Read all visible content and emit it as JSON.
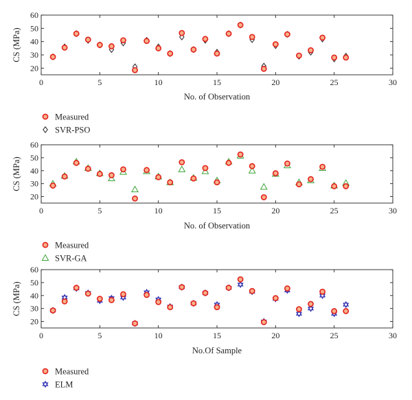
{
  "colors": {
    "axis": "#231f20",
    "measured": "#e2211c",
    "measured_fill": "#f7b08a",
    "svr_pso": "#231f20",
    "svr_ga": "#3aa335",
    "elm": "#2b2bb0"
  },
  "chart_data": [
    {
      "type": "scatter",
      "xlabel": "No. of Observation",
      "ylabel": "CS (MPa)",
      "xlim": [
        0,
        30
      ],
      "ylim": [
        15,
        60
      ],
      "xticks": [
        0,
        5,
        10,
        15,
        20,
        25,
        30
      ],
      "yticks": [
        20,
        30,
        40,
        50,
        60
      ],
      "grid": false,
      "legend_position": "below-left",
      "series": [
        {
          "name": "Measured",
          "marker": "circle",
          "x": [
            1,
            2,
            3,
            4,
            5,
            6,
            7,
            8,
            9,
            10,
            11,
            12,
            13,
            14,
            15,
            16,
            17,
            18,
            19,
            20,
            21,
            22,
            23,
            24,
            25,
            26
          ],
          "y": [
            28.5,
            35.5,
            46,
            41.5,
            37.5,
            36.5,
            41,
            18.5,
            40.5,
            35,
            31,
            46.5,
            34,
            42,
            31,
            46,
            52.5,
            43.5,
            19.5,
            38,
            45.5,
            29.5,
            33.5,
            43,
            28,
            28
          ]
        },
        {
          "name": "SVR-PSO",
          "marker": "diamond",
          "x": [
            1,
            2,
            3,
            4,
            5,
            6,
            7,
            8,
            9,
            10,
            11,
            12,
            13,
            14,
            15,
            16,
            17,
            18,
            19,
            20,
            21,
            22,
            23,
            24,
            25,
            26
          ],
          "y": [
            28.5,
            36,
            46,
            41,
            37.5,
            34,
            39,
            21,
            41,
            36,
            31,
            43.5,
            34,
            41,
            32,
            46,
            52.5,
            41.5,
            21.5,
            37,
            45.5,
            29,
            32,
            42,
            27,
            29
          ]
        }
      ]
    },
    {
      "type": "scatter",
      "xlabel": "No. of Observation",
      "ylabel": "CS (MPa)",
      "xlim": [
        0,
        30
      ],
      "ylim": [
        15,
        60
      ],
      "xticks": [
        0,
        5,
        10,
        15,
        20,
        25,
        30
      ],
      "yticks": [
        20,
        30,
        40,
        50,
        60
      ],
      "grid": false,
      "legend_position": "below-left",
      "series": [
        {
          "name": "Measured",
          "marker": "circle",
          "x": [
            1,
            2,
            3,
            4,
            5,
            6,
            7,
            8,
            9,
            10,
            11,
            12,
            13,
            14,
            15,
            16,
            17,
            18,
            19,
            20,
            21,
            22,
            23,
            24,
            25,
            26
          ],
          "y": [
            28.5,
            35.5,
            46,
            41.5,
            37.5,
            36.5,
            41,
            18.5,
            40.5,
            35,
            31,
            46.5,
            34,
            42,
            31,
            46,
            52.5,
            43.5,
            19.5,
            38,
            45.5,
            29.5,
            33.5,
            43,
            28,
            28
          ]
        },
        {
          "name": "SVR-GA",
          "marker": "triangle",
          "x": [
            1,
            2,
            3,
            4,
            5,
            6,
            7,
            8,
            9,
            10,
            11,
            12,
            13,
            14,
            15,
            16,
            17,
            18,
            19,
            20,
            21,
            22,
            23,
            24,
            25,
            26
          ],
          "y": [
            30,
            36,
            47,
            42,
            38,
            34,
            39,
            25.5,
            39.5,
            35.5,
            31,
            41,
            34.5,
            39.5,
            32.5,
            47,
            51.5,
            40,
            27.5,
            37.5,
            44,
            31,
            32.5,
            42,
            28.5,
            30.5
          ]
        }
      ]
    },
    {
      "type": "scatter",
      "xlabel": "No.Of Sample",
      "ylabel": "CS (MPa)",
      "xlim": [
        0,
        30
      ],
      "ylim": [
        15,
        60
      ],
      "xticks": [
        0,
        5,
        10,
        15,
        20,
        25,
        30
      ],
      "yticks": [
        20,
        30,
        40,
        50,
        60
      ],
      "grid": false,
      "legend_position": "below-left",
      "series": [
        {
          "name": "Measured",
          "marker": "circle",
          "x": [
            1,
            2,
            3,
            4,
            5,
            6,
            7,
            8,
            9,
            10,
            11,
            12,
            13,
            14,
            15,
            16,
            17,
            18,
            19,
            20,
            21,
            22,
            23,
            24,
            25,
            26
          ],
          "y": [
            28.5,
            35.5,
            46,
            41.5,
            37.5,
            36.5,
            41,
            18.5,
            40.5,
            35,
            31,
            46.5,
            34,
            42,
            31,
            46,
            52.5,
            43.5,
            19.5,
            38,
            45.5,
            29.5,
            33.5,
            43,
            28,
            28
          ]
        },
        {
          "name": "ELM",
          "marker": "star",
          "x": [
            1,
            2,
            3,
            4,
            5,
            6,
            7,
            8,
            9,
            10,
            11,
            12,
            13,
            14,
            15,
            16,
            17,
            18,
            19,
            20,
            21,
            22,
            23,
            24,
            25,
            26
          ],
          "y": [
            28.5,
            38.5,
            45.5,
            42,
            36,
            38,
            38.5,
            18.5,
            42.5,
            37,
            31.5,
            46.5,
            34,
            42,
            33,
            46,
            48.5,
            43,
            20,
            37.5,
            44,
            26,
            30,
            40,
            26,
            33
          ]
        }
      ]
    }
  ]
}
